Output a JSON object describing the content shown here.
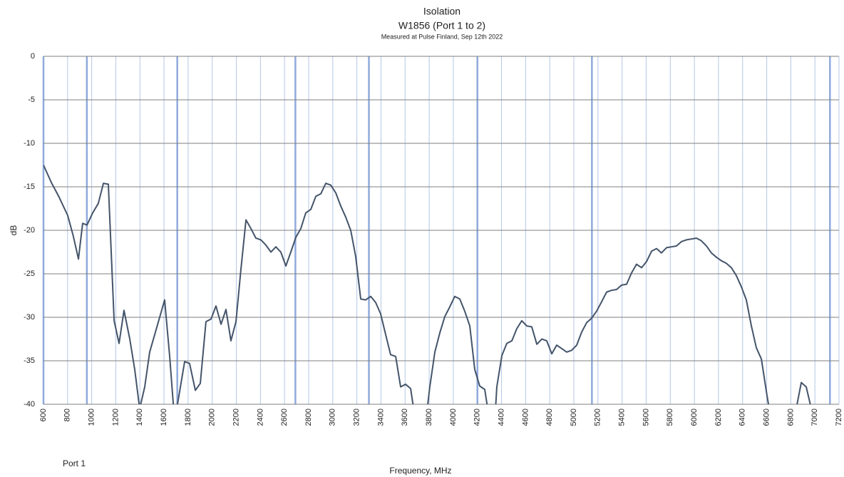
{
  "chart_data": {
    "type": "line",
    "title": "Isolation",
    "subtitle": "W1856 (Port 1 to 2)",
    "note": "Measured at Pulse Finland, Sep 12th 2022",
    "x_label": "Frequency, MHz",
    "y_label": "dB",
    "x": [
      600,
      665,
      730,
      801,
      848,
      890,
      925,
      961,
      1008,
      1055,
      1097,
      1138,
      1186,
      1227,
      1268,
      1316,
      1357,
      1398,
      1440,
      1481,
      1564,
      1605,
      1647,
      1688,
      1730,
      1771,
      1812,
      1860,
      1901,
      1948,
      1990,
      2031,
      2073,
      2114,
      2155,
      2197,
      2238,
      2280,
      2321,
      2362,
      2404,
      2445,
      2487,
      2528,
      2569,
      2611,
      2652,
      2694,
      2735,
      2776,
      2818,
      2859,
      2901,
      2942,
      2983,
      3025,
      3066,
      3108,
      3149,
      3190,
      3232,
      3273,
      3315,
      3356,
      3397,
      3439,
      3480,
      3522,
      3563,
      3604,
      3646,
      3687,
      3746,
      3805,
      3847,
      3888,
      3930,
      3971,
      4012,
      4054,
      4095,
      4137,
      4178,
      4219,
      4261,
      4302,
      4344,
      4361,
      4403,
      4444,
      4486,
      4527,
      4568,
      4610,
      4651,
      4693,
      4734,
      4775,
      4817,
      4858,
      4900,
      4941,
      4982,
      5024,
      5065,
      5107,
      5148,
      5189,
      5231,
      5272,
      5313,
      5355,
      5396,
      5438,
      5479,
      5520,
      5562,
      5603,
      5645,
      5686,
      5727,
      5769,
      5810,
      5851,
      5893,
      5934,
      5976,
      6017,
      6058,
      6100,
      6141,
      6183,
      6224,
      6266,
      6307,
      6348,
      6390,
      6431,
      6473,
      6514,
      6556,
      6597,
      6638,
      6804,
      6845,
      6887,
      6928,
      6970
    ],
    "series": [
      {
        "name": "Port 1",
        "color": "#44546a",
        "values": [
          -12.5,
          -14.5,
          -16.2,
          -18.3,
          -20.7,
          -23.3,
          -19.2,
          -19.4,
          -18,
          -16.9,
          -14.6,
          -14.7,
          -30.4,
          -33,
          -29.2,
          -32.5,
          -36,
          -40.5,
          -38,
          -34,
          -30,
          -28,
          -34.5,
          -42,
          -38.5,
          -35.1,
          -35.3,
          -38.4,
          -37.6,
          -30.5,
          -30.2,
          -28.7,
          -30.8,
          -29.1,
          -32.7,
          -30.5,
          -24.5,
          -18.8,
          -19.8,
          -20.9,
          -21.1,
          -21.7,
          -22.5,
          -21.9,
          -22.5,
          -24.1,
          -22.5,
          -20.8,
          -19.8,
          -18,
          -17.6,
          -16.1,
          -15.8,
          -14.6,
          -14.8,
          -15.7,
          -17.2,
          -18.5,
          -20,
          -23,
          -27.9,
          -28,
          -27.6,
          -28.3,
          -29.6,
          -32,
          -34.3,
          -34.5,
          -38,
          -37.7,
          -38.2,
          -42,
          -45,
          -38,
          -34,
          -31.8,
          -29.9,
          -28.8,
          -27.6,
          -27.9,
          -29.3,
          -31,
          -36,
          -37.9,
          -38.3,
          -42,
          -42,
          -38,
          -34.4,
          -33,
          -32.7,
          -31.3,
          -30.4,
          -31,
          -31.1,
          -33.1,
          -32.5,
          -32.7,
          -34.2,
          -33.2,
          -33.6,
          -34,
          -33.8,
          -33.2,
          -31.7,
          -30.6,
          -30.1,
          -29.3,
          -28.2,
          -27.1,
          -26.9,
          -26.8,
          -26.3,
          -26.2,
          -24.9,
          -23.9,
          -24.3,
          -23.6,
          -22.4,
          -22.1,
          -22.6,
          -22,
          -21.9,
          -21.8,
          -21.3,
          -21.1,
          -21,
          -20.9,
          -21.2,
          -21.8,
          -22.6,
          -23.1,
          -23.5,
          -23.8,
          -24.3,
          -25.2,
          -26.5,
          -28,
          -31,
          -33.5,
          -34.8,
          -38.5,
          -42,
          -42,
          -40.5,
          -37.5,
          -38,
          -40.5
        ]
      }
    ],
    "xlim": [
      600,
      7200
    ],
    "xticks": [
      600,
      800,
      1000,
      1200,
      1400,
      1600,
      1800,
      2000,
      2200,
      2400,
      2600,
      2800,
      3000,
      3200,
      3400,
      3600,
      3800,
      4000,
      4200,
      4400,
      4600,
      4800,
      5000,
      5200,
      5400,
      5600,
      5800,
      6000,
      6200,
      6400,
      6600,
      6800,
      7000,
      7200
    ],
    "ylim": [
      -40,
      0
    ],
    "yticks": [
      0,
      -5,
      -10,
      -15,
      -20,
      -25,
      -30,
      -35,
      -40
    ],
    "band_lines": [
      600,
      960,
      1710,
      2690,
      3300,
      4200,
      5150,
      7125
    ],
    "grid": true
  }
}
